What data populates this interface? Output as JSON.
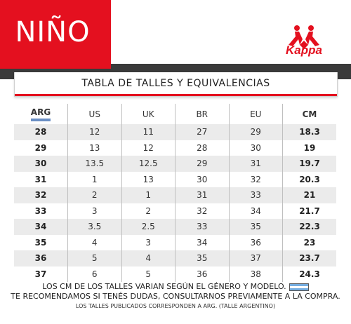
{
  "header": {
    "title": "NIÑO",
    "brand": "Kappa",
    "subtitle": "TABLA DE TALLES Y EQUIVALENCIAS"
  },
  "table": {
    "columns": [
      "ARG",
      "US",
      "UK",
      "BR",
      "EU",
      "CM"
    ],
    "rows": [
      [
        "28",
        "12",
        "11",
        "27",
        "29",
        "18.3"
      ],
      [
        "29",
        "13",
        "12",
        "28",
        "30",
        "19"
      ],
      [
        "30",
        "13.5",
        "12.5",
        "29",
        "31",
        "19.7"
      ],
      [
        "31",
        "1",
        "13",
        "30",
        "32",
        "20.3"
      ],
      [
        "32",
        "2",
        "1",
        "31",
        "33",
        "21"
      ],
      [
        "33",
        "3",
        "2",
        "32",
        "34",
        "21.7"
      ],
      [
        "34",
        "3.5",
        "2.5",
        "33",
        "35",
        "22.3"
      ],
      [
        "35",
        "4",
        "3",
        "34",
        "36",
        "23"
      ],
      [
        "36",
        "5",
        "4",
        "35",
        "37",
        "23.7"
      ],
      [
        "37",
        "6",
        "5",
        "36",
        "38",
        "24.3"
      ]
    ]
  },
  "footer": {
    "line1": "LOS CM DE LOS TALLES VARIAN SEGÚN EL GÉNERO Y MODELO.",
    "line2": "TE RECOMENDAMOS SI TENÉS DUDAS, CONSULTARNOS PREVIAMENTE A LA COMPRA.",
    "line3": "LOS TALLES PUBLICADOS CORRESPONDEN A ARG. (TALLE ARGENTINO)"
  },
  "colors": {
    "brand_red": "#e4101f",
    "dark_stripe": "#3a3a3a",
    "row_shade": "#ebebeb"
  }
}
